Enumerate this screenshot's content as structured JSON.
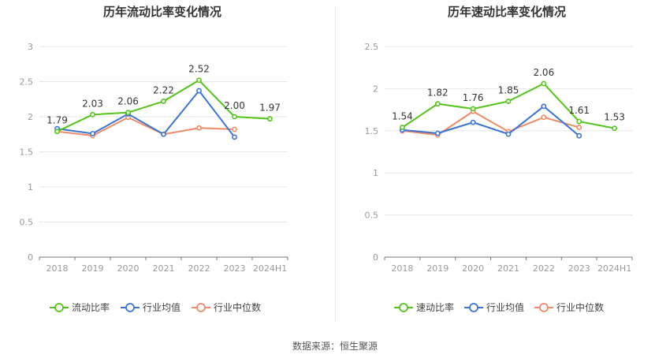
{
  "source_label": "数据来源：恒生聚源",
  "chart_data": [
    {
      "type": "line",
      "title": "历年流动比率变化情况",
      "categories": [
        "2018",
        "2019",
        "2020",
        "2021",
        "2022",
        "2023",
        "2024H1"
      ],
      "ylim": [
        0,
        3
      ],
      "yticks": [
        "0",
        "0.5",
        "1",
        "1.5",
        "2",
        "2.5",
        "3"
      ],
      "grid": true,
      "legend_position": "bottom",
      "series": [
        {
          "name": "流动比率",
          "color": "#52c41a",
          "values": [
            1.79,
            2.03,
            2.06,
            2.22,
            2.52,
            2.0,
            1.97
          ],
          "labels": [
            "1.79",
            "2.03",
            "2.06",
            "2.22",
            "2.52",
            "2.00",
            "1.97"
          ]
        },
        {
          "name": "行业均值",
          "color": "#3a75d4",
          "values": [
            1.83,
            1.76,
            2.04,
            1.75,
            2.37,
            1.71,
            null
          ]
        },
        {
          "name": "行业中位数",
          "color": "#f08a65",
          "values": [
            1.79,
            1.73,
            1.99,
            1.75,
            1.84,
            1.82,
            null
          ]
        }
      ]
    },
    {
      "type": "line",
      "title": "历年速动比率变化情况",
      "categories": [
        "2018",
        "2019",
        "2020",
        "2021",
        "2022",
        "2023",
        "2024H1"
      ],
      "ylim": [
        0,
        2.5
      ],
      "yticks": [
        "0",
        "0.5",
        "1",
        "1.5",
        "2",
        "2.5"
      ],
      "grid": true,
      "legend_position": "bottom",
      "series": [
        {
          "name": "速动比率",
          "color": "#52c41a",
          "values": [
            1.54,
            1.82,
            1.76,
            1.85,
            2.06,
            1.61,
            1.53
          ],
          "labels": [
            "1.54",
            "1.82",
            "1.76",
            "1.85",
            "2.06",
            "1.61",
            "1.53"
          ]
        },
        {
          "name": "行业均值",
          "color": "#3a75d4",
          "values": [
            1.51,
            1.47,
            1.6,
            1.46,
            1.79,
            1.44,
            null
          ]
        },
        {
          "name": "行业中位数",
          "color": "#f08a65",
          "values": [
            1.5,
            1.45,
            1.73,
            1.49,
            1.66,
            1.54,
            null
          ]
        }
      ]
    }
  ]
}
